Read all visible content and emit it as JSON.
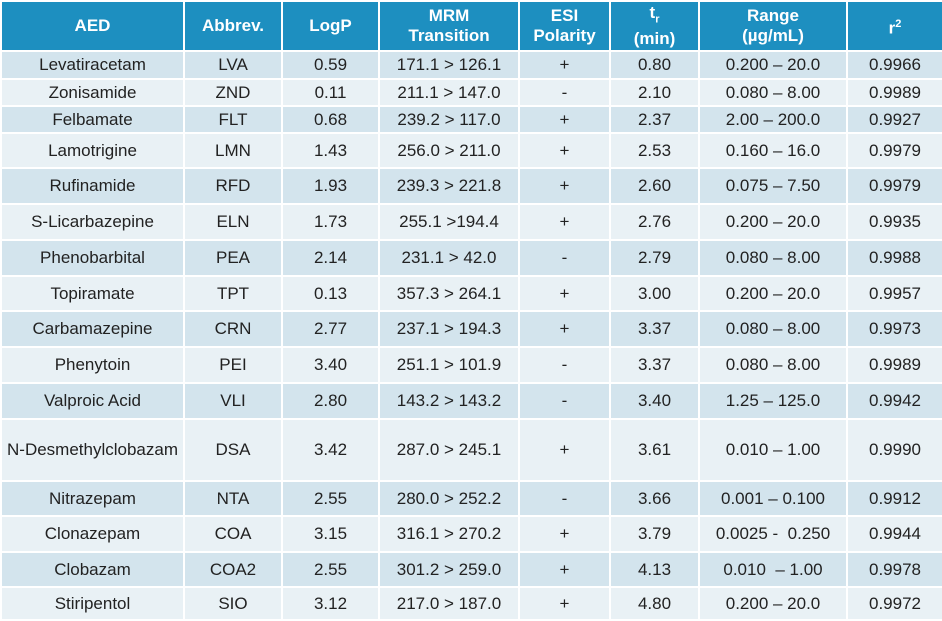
{
  "table": {
    "header": [
      {
        "text": "AED"
      },
      {
        "text": "Abbrev."
      },
      {
        "text": "LogP"
      },
      {
        "line1": "MRM",
        "line2": "Transition"
      },
      {
        "line1": "ESI",
        "line2": "Polarity"
      },
      {
        "main": "t",
        "sub": "r",
        "line2": "(min)"
      },
      {
        "line1": "Range",
        "line2": "(µg/mL)"
      },
      {
        "main": "r",
        "sup": "2"
      }
    ],
    "rows": [
      [
        "Levatiracetam",
        "LVA",
        "0.59",
        "171.1 > 126.1",
        "+",
        "0.80",
        "0.200 – 20.0",
        "0.9966"
      ],
      [
        "Zonisamide",
        "ZND",
        "0.11",
        "211.1 > 147.0",
        "-",
        "2.10",
        "0.080 – 8.00",
        "0.9989"
      ],
      [
        "Felbamate",
        "FLT",
        "0.68",
        "239.2 > 117.0",
        "+",
        "2.37",
        "2.00 – 200.0",
        "0.9927"
      ],
      [
        "Lamotrigine",
        "LMN",
        "1.43",
        "256.0 > 211.0",
        "+",
        "2.53",
        "0.160 – 16.0",
        "0.9979"
      ],
      [
        "Rufinamide",
        "RFD",
        "1.93",
        "239.3 > 221.8",
        "+",
        "2.60",
        "0.075 – 7.50",
        "0.9979"
      ],
      [
        "S-Licarbazepine",
        "ELN",
        "1.73",
        "255.1 >194.4",
        "+",
        "2.76",
        "0.200 – 20.0",
        "0.9935"
      ],
      [
        "Phenobarbital",
        "PEA",
        "2.14",
        "231.1 > 42.0",
        "-",
        "2.79",
        "0.080 – 8.00",
        "0.9988"
      ],
      [
        "Topiramate",
        "TPT",
        "0.13",
        "357.3 > 264.1",
        "+",
        "3.00",
        "0.200 – 20.0",
        "0.9957"
      ],
      [
        "Carbamazepine",
        "CRN",
        "2.77",
        "237.1 > 194.3",
        "+",
        "3.37",
        "0.080 – 8.00",
        "0.9973"
      ],
      [
        "Phenytoin",
        "PEI",
        "3.40",
        "251.1 > 101.9",
        "-",
        "3.37",
        "0.080 – 8.00",
        "0.9989"
      ],
      [
        "Valproic Acid",
        "VLI",
        "2.80",
        "143.2 > 143.2",
        "-",
        "3.40",
        "1.25 – 125.0",
        "0.9942"
      ],
      [
        "N-Desmethylclobazam",
        "DSA",
        "3.42",
        "287.0 > 245.1",
        "+",
        "3.61",
        "0.010 – 1.00",
        "0.9990"
      ],
      [
        "Nitrazepam",
        "NTA",
        "2.55",
        "280.0 > 252.2",
        "-",
        "3.66",
        "0.001 – 0.100",
        "0.9912"
      ],
      [
        "Clonazepam",
        "COA",
        "3.15",
        "316.1 > 270.2",
        "+",
        "3.79",
        "0.0025 -  0.250",
        "0.9944"
      ],
      [
        "Clobazam",
        "COA2",
        "2.55",
        "301.2 > 259.0",
        "+",
        "4.13",
        "0.010  – 1.00",
        "0.9978"
      ],
      [
        "Stiripentol",
        "SIO",
        "3.12",
        "217.0 > 187.0",
        "+",
        "4.80",
        "0.200 – 20.0",
        "0.9972"
      ]
    ]
  }
}
